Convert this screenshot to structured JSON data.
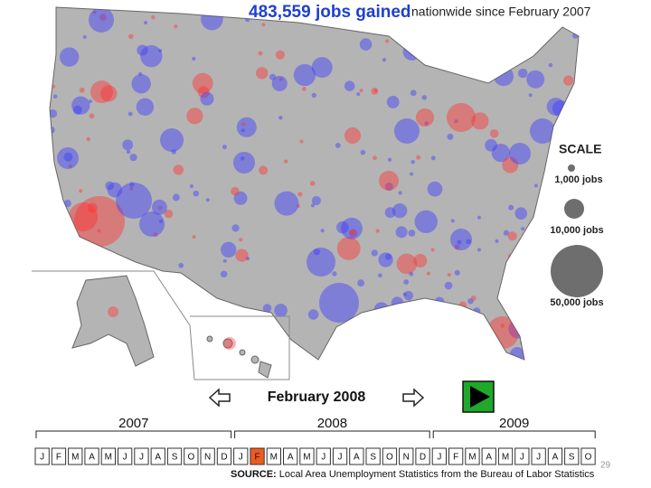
{
  "header": {
    "headline": "483,559 jobs gained",
    "subline": "nationwide since February 2007"
  },
  "scale": {
    "title": "SCALE",
    "items": [
      "1,000 jobs",
      "10,000 jobs",
      "50,000 jobs"
    ]
  },
  "timeline": {
    "current": "February 2008",
    "years": [
      {
        "label": "2007",
        "months": [
          "J",
          "F",
          "M",
          "A",
          "M",
          "J",
          "J",
          "A",
          "S",
          "O",
          "N",
          "D"
        ]
      },
      {
        "label": "2008",
        "months": [
          "J",
          "F",
          "M",
          "A",
          "M",
          "J",
          "J",
          "A",
          "S",
          "O",
          "N",
          "D"
        ]
      },
      {
        "label": "2009",
        "months": [
          "J",
          "F",
          "M",
          "A",
          "M",
          "J",
          "J",
          "A",
          "S",
          "O"
        ]
      }
    ]
  },
  "source": {
    "prefix": "SOURCE:",
    "text": "Local Area Unemployment Statistics from the Bureau of Labor Statistics"
  },
  "page_number": "29"
}
